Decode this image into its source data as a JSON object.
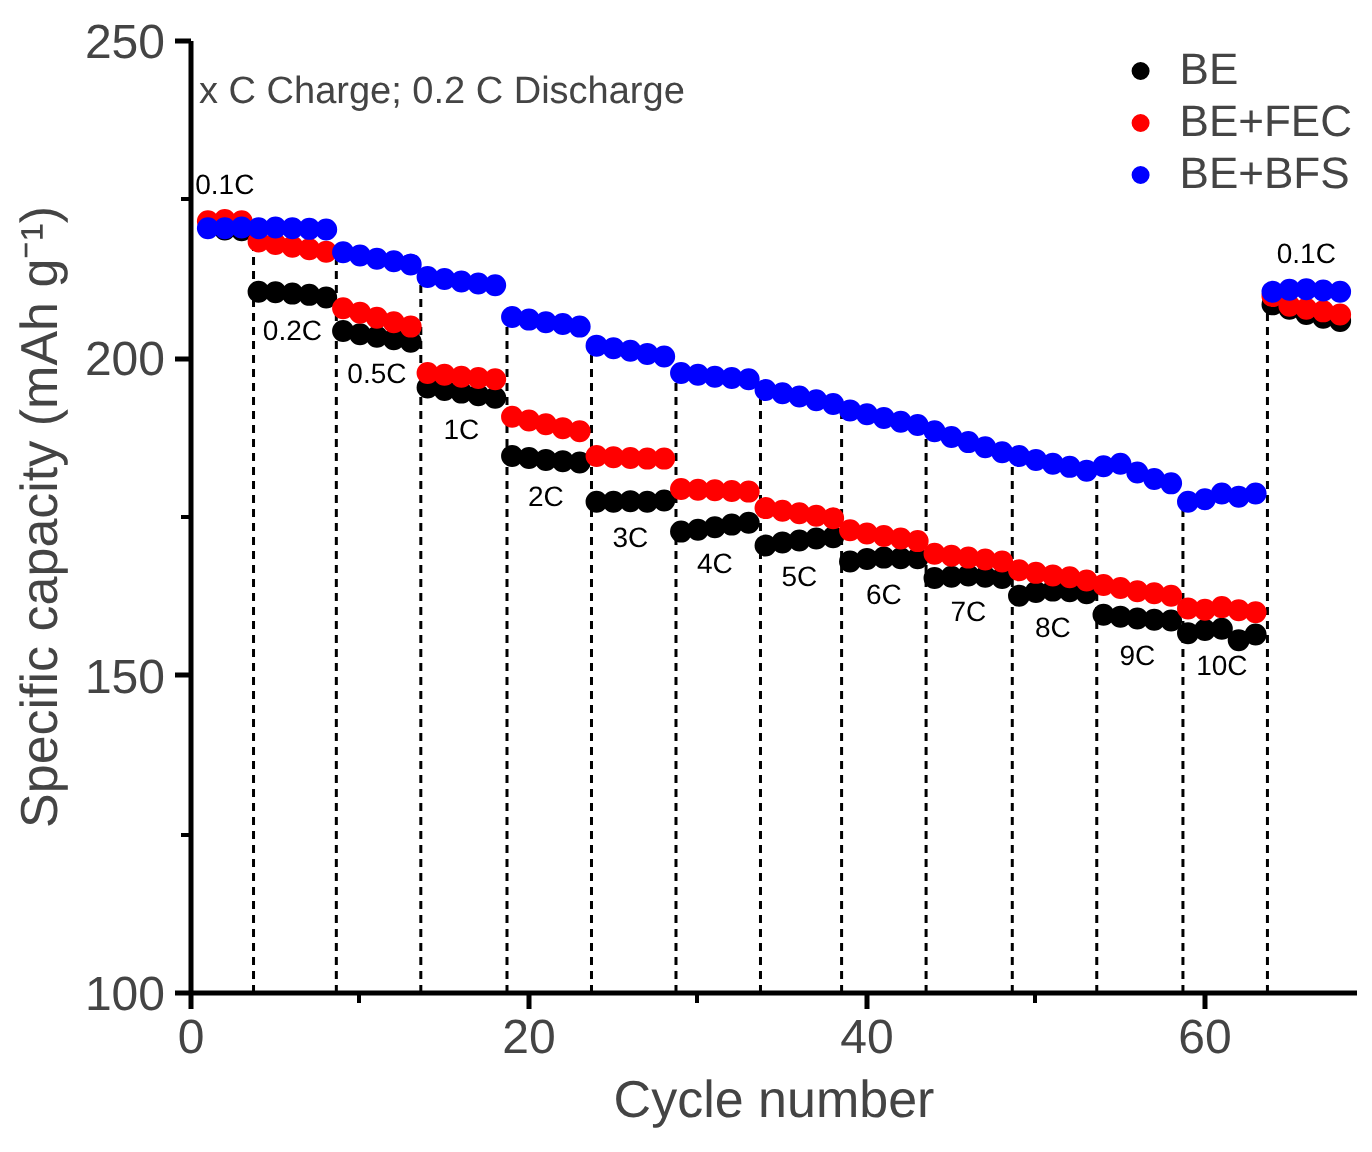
{
  "chart_data": {
    "type": "scatter",
    "xlabel": "Cycle number",
    "ylabel": "Specific capacity (mAh g⁻¹)",
    "xlim": [
      0,
      69
    ],
    "ylim": [
      100,
      250
    ],
    "xticks": [
      0,
      20,
      40,
      60
    ],
    "yticks": [
      100,
      150,
      200,
      250
    ],
    "grid": false,
    "legend": "top right",
    "marker": "circle",
    "x": [
      1,
      2,
      3,
      4,
      5,
      6,
      7,
      8,
      9,
      10,
      11,
      12,
      13,
      14,
      15,
      16,
      17,
      18,
      19,
      20,
      21,
      22,
      23,
      24,
      25,
      26,
      27,
      28,
      29,
      30,
      31,
      32,
      33,
      34,
      35,
      36,
      37,
      38,
      39,
      40,
      41,
      42,
      43,
      44,
      45,
      46,
      47,
      48,
      49,
      50,
      51,
      52,
      53,
      54,
      55,
      56,
      57,
      58,
      59,
      60,
      61,
      62,
      63,
      64,
      65,
      66,
      67,
      68
    ],
    "series": [
      {
        "name": "BE",
        "color": "#000000",
        "values": [
          null,
          220.3,
          220.2,
          210.5,
          210.4,
          210.2,
          210.0,
          209.6,
          204.3,
          203.8,
          203.4,
          203.0,
          202.6,
          195.4,
          195.0,
          194.6,
          194.2,
          193.8,
          184.6,
          184.3,
          184.0,
          183.8,
          183.6,
          177.4,
          177.4,
          177.5,
          177.4,
          177.6,
          172.7,
          173.0,
          173.4,
          173.8,
          174.1,
          170.5,
          171.0,
          171.3,
          171.6,
          171.8,
          168.0,
          168.4,
          168.6,
          168.5,
          168.5,
          165.4,
          165.6,
          165.8,
          165.6,
          165.4,
          162.6,
          163.2,
          163.4,
          163.3,
          163.0,
          159.6,
          159.3,
          159.0,
          158.8,
          158.7,
          156.7,
          157.2,
          157.4,
          155.6,
          156.5,
          208.5,
          207.8,
          207.0,
          206.4,
          205.9
        ]
      },
      {
        "name": "BE+FEC",
        "color": "#ff0000",
        "values": [
          221.6,
          221.8,
          221.6,
          218.4,
          218.0,
          217.6,
          217.2,
          216.8,
          207.9,
          207.2,
          206.4,
          205.7,
          205.0,
          197.7,
          197.4,
          197.1,
          196.9,
          196.7,
          190.8,
          190.2,
          189.6,
          189.0,
          188.5,
          184.6,
          184.4,
          184.3,
          184.2,
          184.2,
          179.4,
          179.3,
          179.2,
          179.1,
          179.0,
          176.4,
          176.0,
          175.6,
          175.2,
          174.8,
          172.9,
          172.4,
          172.0,
          171.6,
          171.2,
          169.2,
          168.9,
          168.6,
          168.3,
          168.0,
          166.6,
          166.2,
          165.8,
          165.5,
          165.0,
          164.3,
          163.8,
          163.3,
          163.0,
          162.6,
          160.6,
          160.4,
          160.8,
          160.3,
          160.0,
          209.8,
          208.3,
          207.8,
          207.4,
          206.9
        ]
      },
      {
        "name": "BE+BFS",
        "color": "#0000ff",
        "values": [
          220.5,
          220.5,
          220.6,
          220.5,
          220.6,
          220.5,
          220.4,
          220.3,
          216.7,
          216.2,
          215.7,
          215.3,
          214.8,
          212.8,
          212.5,
          212.1,
          211.8,
          211.5,
          206.5,
          206.1,
          205.7,
          205.4,
          205.0,
          202.0,
          201.6,
          201.2,
          200.7,
          200.3,
          197.7,
          197.4,
          197.1,
          196.9,
          196.7,
          195.0,
          194.5,
          194.0,
          193.4,
          192.8,
          191.8,
          191.2,
          190.6,
          190.0,
          189.5,
          188.5,
          187.6,
          186.8,
          186.0,
          185.2,
          184.6,
          184.0,
          183.4,
          182.9,
          182.3,
          183.0,
          183.4,
          182.0,
          181.0,
          180.3,
          177.4,
          177.8,
          178.7,
          178.2,
          178.7,
          210.5,
          210.8,
          210.9,
          210.7,
          210.5
        ]
      }
    ],
    "ref_lines": [
      {
        "axis": "x",
        "value": 3.7,
        "color": "#000000",
        "line_style": "dashed"
      },
      {
        "axis": "x",
        "value": 8.6,
        "color": "#000000",
        "line_style": "dashed"
      },
      {
        "axis": "x",
        "value": 13.6,
        "color": "#000000",
        "line_style": "dashed"
      },
      {
        "axis": "x",
        "value": 18.7,
        "color": "#000000",
        "line_style": "dashed"
      },
      {
        "axis": "x",
        "value": 23.7,
        "color": "#000000",
        "line_style": "dashed"
      },
      {
        "axis": "x",
        "value": 28.7,
        "color": "#000000",
        "line_style": "dashed"
      },
      {
        "axis": "x",
        "value": 33.7,
        "color": "#000000",
        "line_style": "dashed"
      },
      {
        "axis": "x",
        "value": 38.5,
        "color": "#000000",
        "line_style": "dashed"
      },
      {
        "axis": "x",
        "value": 43.5,
        "color": "#000000",
        "line_style": "dashed"
      },
      {
        "axis": "x",
        "value": 48.6,
        "color": "#000000",
        "line_style": "dashed"
      },
      {
        "axis": "x",
        "value": 53.6,
        "color": "#000000",
        "line_style": "dashed"
      },
      {
        "axis": "x",
        "value": 58.7,
        "color": "#000000",
        "line_style": "dashed"
      },
      {
        "axis": "x",
        "value": 63.7,
        "color": "#000000",
        "line_style": "dashed"
      }
    ],
    "annotations": [
      "x C Charge; 0.2 C Discharge",
      {
        "text": "0.1C",
        "x": 2,
        "y": 221.8
      },
      {
        "text": "0.2C",
        "x": 6,
        "y": 210.2
      },
      {
        "text": "0.5C",
        "x": 11,
        "y": 203.4
      },
      {
        "text": "1C",
        "x": 16,
        "y": 194.6
      },
      {
        "text": "2C",
        "x": 21,
        "y": 184.0
      },
      {
        "text": "3C",
        "x": 26,
        "y": 177.5
      },
      {
        "text": "4C",
        "x": 31,
        "y": 173.4
      },
      {
        "text": "5C",
        "x": 36,
        "y": 171.3
      },
      {
        "text": "6C",
        "x": 41,
        "y": 168.6
      },
      {
        "text": "7C",
        "x": 46,
        "y": 165.8
      },
      {
        "text": "8C",
        "x": 51,
        "y": 163.4
      },
      {
        "text": "9C",
        "x": 56,
        "y": 159.0
      },
      {
        "text": "10C",
        "x": 61,
        "y": 157.4
      },
      {
        "text": "0.1C",
        "x": 66,
        "y": 210.9
      }
    ]
  }
}
